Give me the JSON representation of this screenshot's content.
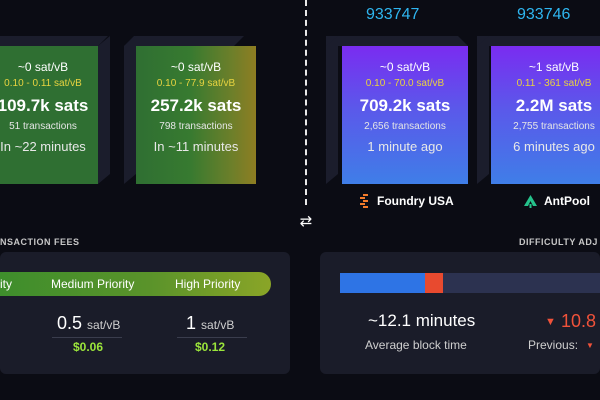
{
  "pending_blocks": [
    {
      "median_fee": "~0 sat/vB",
      "fee_range": "0.10 - 0.11 sat/vB",
      "size": "109.7k sats",
      "tx_count": "51 transactions",
      "eta": "In ~22 minutes"
    },
    {
      "median_fee": "~0 sat/vB",
      "fee_range": "0.10 - 77.9 sat/vB",
      "size": "257.2k sats",
      "tx_count": "798 transactions",
      "eta": "In ~11 minutes"
    }
  ],
  "mined_blocks": [
    {
      "height": "933747",
      "median_fee": "~0 sat/vB",
      "fee_range": "0.10 - 70.0 sat/vB",
      "size": "709.2k sats",
      "tx_count": "2,656 transactions",
      "age": "1 minute ago",
      "pool": "Foundry USA"
    },
    {
      "height": "933746",
      "median_fee": "~1 sat/vB",
      "fee_range": "0.11 - 361 sat/vB",
      "size": "2.2M sats",
      "tx_count": "2,755 transactions",
      "age": "6 minutes ago",
      "pool": "AntPool"
    }
  ],
  "fees": {
    "section_title": "NSACTION FEES",
    "priorities": [
      {
        "label": "ity"
      },
      {
        "label": "Medium Priority",
        "value": "0.5",
        "unit": "sat/vB",
        "usd": "$0.06"
      },
      {
        "label": "High Priority",
        "value": "1",
        "unit": "sat/vB",
        "usd": "$0.12"
      }
    ]
  },
  "difficulty": {
    "section_title": "DIFFICULTY ADJ",
    "progress_fraction": 0.335,
    "red_fraction": 0.07,
    "avg_block_time": "~12.1 minutes",
    "avg_block_time_label": "Average block time",
    "change": "10.8",
    "previous_label": "Previous:"
  },
  "icons": {
    "swap": "swap-arrows-icon",
    "foundry": "foundry-logo-icon",
    "antpool": "antpool-logo-icon",
    "down_triangle": "down-triangle-icon"
  },
  "colors": {
    "block_height": "#2fb6f0",
    "fee_range": "#e8d340",
    "usd": "#9be53b",
    "red": "#f0523a"
  }
}
